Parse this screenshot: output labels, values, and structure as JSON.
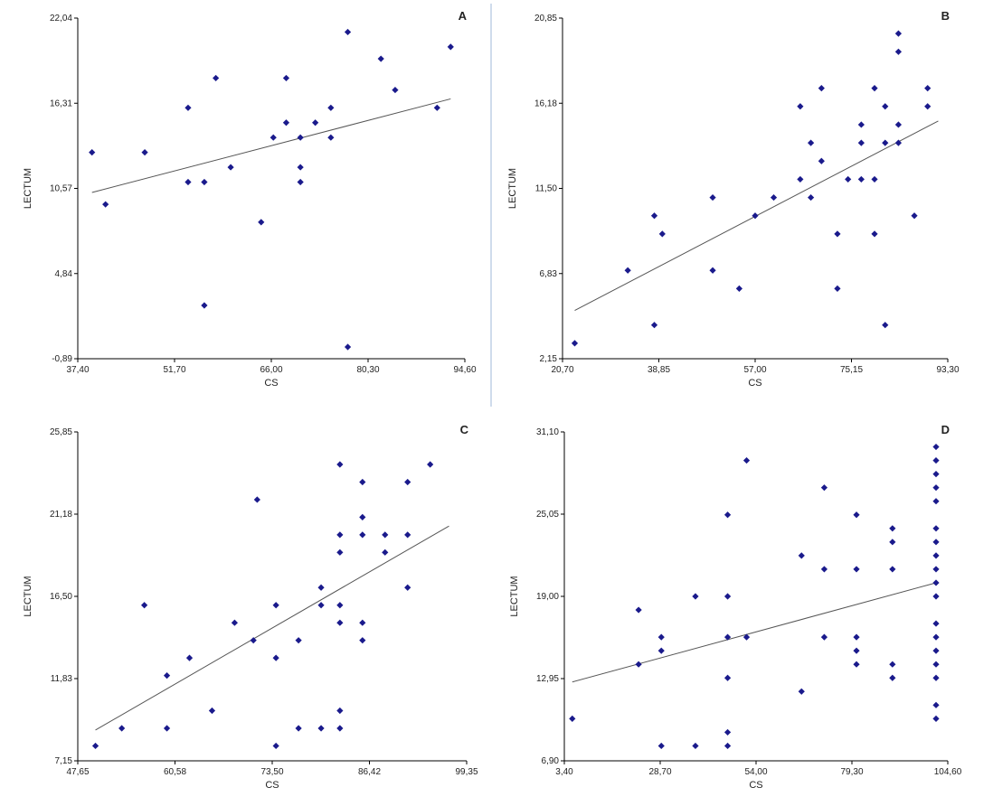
{
  "chart_data": [
    {
      "type": "scatter",
      "panel_letter": "A",
      "xlabel": "CS",
      "ylabel": "LECTUM",
      "xlim": [
        37.4,
        94.6
      ],
      "ylim": [
        -0.89,
        22.04
      ],
      "xticks": [
        "37,40",
        "51,70",
        "66,00",
        "80,30",
        "94,60"
      ],
      "yticks": [
        "-0,89",
        "4,84",
        "10,57",
        "16,31",
        "22,04"
      ],
      "trendline": [
        [
          39.5,
          10.3
        ],
        [
          92.5,
          16.6
        ]
      ],
      "points": [
        [
          39.5,
          13.0
        ],
        [
          41.5,
          9.5
        ],
        [
          47.3,
          13.0
        ],
        [
          53.7,
          16.0
        ],
        [
          53.7,
          11.0
        ],
        [
          56.1,
          11.0
        ],
        [
          57.8,
          18.0
        ],
        [
          60.0,
          12.0
        ],
        [
          64.5,
          8.3
        ],
        [
          66.3,
          14.0
        ],
        [
          68.2,
          15.0
        ],
        [
          68.2,
          18.0
        ],
        [
          70.3,
          14.0
        ],
        [
          70.3,
          12.0
        ],
        [
          70.3,
          11.0
        ],
        [
          72.5,
          15.0
        ],
        [
          74.8,
          16.0
        ],
        [
          74.8,
          14.0
        ],
        [
          56.1,
          2.7
        ],
        [
          77.3,
          21.1
        ],
        [
          77.3,
          -0.1
        ],
        [
          82.2,
          19.3
        ],
        [
          84.3,
          17.2
        ],
        [
          90.5,
          16.0
        ],
        [
          92.5,
          20.1
        ]
      ]
    },
    {
      "type": "scatter",
      "panel_letter": "B",
      "xlabel": "CS",
      "ylabel": "LECTUM",
      "xlim": [
        20.7,
        93.3
      ],
      "ylim": [
        2.15,
        20.85
      ],
      "xticks": [
        "20,70",
        "38,85",
        "57,00",
        "75,15",
        "93,30"
      ],
      "yticks": [
        "2,15",
        "6,83",
        "11,50",
        "16,18",
        "20,85"
      ],
      "trendline": [
        [
          23.0,
          4.8
        ],
        [
          91.5,
          15.2
        ]
      ],
      "points": [
        [
          23.0,
          3.0
        ],
        [
          33.0,
          7.0
        ],
        [
          38.0,
          4.0
        ],
        [
          38.0,
          10.0
        ],
        [
          39.5,
          9.0
        ],
        [
          49.0,
          11.0
        ],
        [
          49.0,
          7.0
        ],
        [
          54.0,
          6.0
        ],
        [
          57.0,
          10.0
        ],
        [
          60.5,
          11.0
        ],
        [
          65.5,
          16.0
        ],
        [
          65.5,
          12.0
        ],
        [
          67.5,
          14.0
        ],
        [
          67.5,
          11.0
        ],
        [
          69.5,
          17.0
        ],
        [
          69.5,
          13.0
        ],
        [
          72.5,
          9.0
        ],
        [
          72.5,
          6.0
        ],
        [
          74.5,
          12.0
        ],
        [
          77.0,
          15.0
        ],
        [
          77.0,
          14.0
        ],
        [
          77.0,
          12.0
        ],
        [
          79.5,
          17.0
        ],
        [
          79.5,
          12.0
        ],
        [
          79.5,
          9.0
        ],
        [
          81.5,
          16.0
        ],
        [
          81.5,
          14.0
        ],
        [
          81.5,
          4.0
        ],
        [
          84.0,
          20.0
        ],
        [
          84.0,
          19.0
        ],
        [
          84.0,
          15.0
        ],
        [
          84.0,
          14.0
        ],
        [
          87.0,
          10.0
        ],
        [
          89.5,
          17.0
        ],
        [
          89.5,
          16.0
        ]
      ]
    },
    {
      "type": "scatter",
      "panel_letter": "C",
      "xlabel": "CS",
      "ylabel": "LECTUM",
      "xlim": [
        47.65,
        99.35
      ],
      "ylim": [
        7.15,
        25.85
      ],
      "xticks": [
        "47,65",
        "60,58",
        "73,50",
        "86,42",
        "99,35"
      ],
      "yticks": [
        "7,15",
        "11,83",
        "16,50",
        "21,18",
        "25,85"
      ],
      "trendline": [
        [
          50.0,
          8.9
        ],
        [
          97.0,
          20.5
        ]
      ],
      "points": [
        [
          50.0,
          8.0
        ],
        [
          53.5,
          9.0
        ],
        [
          56.5,
          16.0
        ],
        [
          59.5,
          12.0
        ],
        [
          59.5,
          9.0
        ],
        [
          62.5,
          13.0
        ],
        [
          65.5,
          10.0
        ],
        [
          68.5,
          15.0
        ],
        [
          71.0,
          14.0
        ],
        [
          71.5,
          22.0
        ],
        [
          74.0,
          16.0
        ],
        [
          74.0,
          13.0
        ],
        [
          74.0,
          8.0
        ],
        [
          77.0,
          14.0
        ],
        [
          77.0,
          9.0
        ],
        [
          80.0,
          17.0
        ],
        [
          80.0,
          16.0
        ],
        [
          80.0,
          9.0
        ],
        [
          82.5,
          24.0
        ],
        [
          82.5,
          20.0
        ],
        [
          82.5,
          19.0
        ],
        [
          82.5,
          16.0
        ],
        [
          82.5,
          15.0
        ],
        [
          82.5,
          10.0
        ],
        [
          82.5,
          9.0
        ],
        [
          85.5,
          23.0
        ],
        [
          85.5,
          21.0
        ],
        [
          85.5,
          20.0
        ],
        [
          85.5,
          15.0
        ],
        [
          85.5,
          14.0
        ],
        [
          88.5,
          20.0
        ],
        [
          88.5,
          19.0
        ],
        [
          91.5,
          23.0
        ],
        [
          91.5,
          20.0
        ],
        [
          91.5,
          17.0
        ],
        [
          94.5,
          24.0
        ]
      ]
    },
    {
      "type": "scatter",
      "panel_letter": "D",
      "xlabel": "CS",
      "ylabel": "LECTUM",
      "xlim": [
        3.4,
        104.6
      ],
      "ylim": [
        6.9,
        31.1
      ],
      "xticks": [
        "3,40",
        "28,70",
        "54,00",
        "79,30",
        "104,60"
      ],
      "yticks": [
        "6,90",
        "12,95",
        "19,00",
        "25,05",
        "31,10"
      ],
      "trendline": [
        [
          5.5,
          12.7
        ],
        [
          101.5,
          20.0
        ]
      ],
      "points": [
        [
          5.5,
          10.0
        ],
        [
          23.0,
          18.0
        ],
        [
          23.0,
          14.0
        ],
        [
          29.0,
          16.0
        ],
        [
          29.0,
          15.0
        ],
        [
          29.0,
          8.0
        ],
        [
          38.0,
          19.0
        ],
        [
          38.0,
          8.0
        ],
        [
          46.5,
          25.0
        ],
        [
          46.5,
          19.0
        ],
        [
          46.5,
          16.0
        ],
        [
          46.5,
          13.0
        ],
        [
          46.5,
          9.0
        ],
        [
          46.5,
          8.0
        ],
        [
          51.5,
          29.0
        ],
        [
          51.5,
          16.0
        ],
        [
          66.0,
          22.0
        ],
        [
          66.0,
          12.0
        ],
        [
          72.0,
          27.0
        ],
        [
          72.0,
          21.0
        ],
        [
          72.0,
          16.0
        ],
        [
          80.5,
          25.0
        ],
        [
          80.5,
          21.0
        ],
        [
          80.5,
          16.0
        ],
        [
          80.5,
          15.0
        ],
        [
          80.5,
          14.0
        ],
        [
          90.0,
          24.0
        ],
        [
          90.0,
          23.0
        ],
        [
          90.0,
          21.0
        ],
        [
          90.0,
          14.0
        ],
        [
          90.0,
          13.0
        ],
        [
          101.5,
          30.0
        ],
        [
          101.5,
          29.0
        ],
        [
          101.5,
          28.0
        ],
        [
          101.5,
          27.0
        ],
        [
          101.5,
          26.0
        ],
        [
          101.5,
          24.0
        ],
        [
          101.5,
          23.0
        ],
        [
          101.5,
          22.0
        ],
        [
          101.5,
          21.0
        ],
        [
          101.5,
          20.0
        ],
        [
          101.5,
          19.0
        ],
        [
          101.5,
          17.0
        ],
        [
          101.5,
          16.0
        ],
        [
          101.5,
          15.0
        ],
        [
          101.5,
          14.0
        ],
        [
          101.5,
          13.0
        ],
        [
          101.5,
          11.0
        ],
        [
          101.5,
          10.0
        ]
      ]
    }
  ],
  "colors": {
    "marker": "#1a1a8c",
    "trendline": "#555555",
    "axis": "#000000",
    "divider": "#cfdcec"
  }
}
